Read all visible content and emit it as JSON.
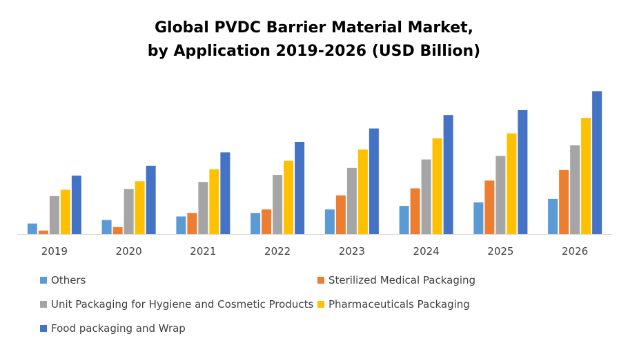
{
  "chart_data": {
    "type": "bar",
    "title_lines": [
      "Global PVDC Barrier Material Market,",
      "by Application 2019-2026 (USD Billion)"
    ],
    "xlabel": "",
    "ylabel": "",
    "categories": [
      "2019",
      "2020",
      "2021",
      "2022",
      "2023",
      "2024",
      "2025",
      "2026"
    ],
    "series": [
      {
        "name": "Others",
        "color": "#5B9BD5",
        "values": [
          15,
          20,
          25,
          30,
          35,
          40,
          45,
          50
        ]
      },
      {
        "name": "Sterilized Medical Packaging",
        "color": "#ED7D31",
        "values": [
          5,
          10,
          30,
          35,
          55,
          65,
          76,
          91
        ]
      },
      {
        "name": "Unit Packaging for Hygiene and Cosmetic Products",
        "color": "#A5A5A5",
        "values": [
          54,
          64,
          74,
          84,
          94,
          106,
          111,
          126
        ]
      },
      {
        "name": "Pharmaceuticals Packaging",
        "color": "#FFC000",
        "values": [
          63,
          75,
          92,
          104,
          120,
          136,
          143,
          165
        ]
      },
      {
        "name": "Food packaging and Wrap",
        "color": "#4472C4",
        "values": [
          83,
          97,
          116,
          131,
          150,
          169,
          176,
          203
        ]
      }
    ],
    "ylim": [
      0,
      220
    ],
    "grid": false,
    "legend_position": "bottom"
  }
}
